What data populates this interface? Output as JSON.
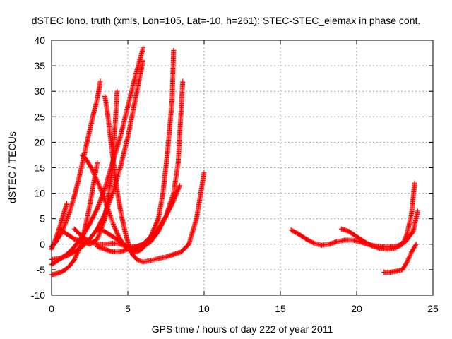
{
  "chart_data": {
    "type": "scatter",
    "title": "dSTEC Iono. truth (xmis, Lon=105, Lat=-10, h=261): STEC-STEC_elemax in phase cont.",
    "xlabel": "GPS time / hours of day 222 of year 2011",
    "ylabel": "dSTEC  / TECUs",
    "xlim": [
      0,
      25
    ],
    "ylim": [
      -10,
      40
    ],
    "xticks": [
      0,
      5,
      10,
      15,
      20,
      25
    ],
    "yticks": [
      -10,
      -5,
      0,
      5,
      10,
      15,
      20,
      25,
      30,
      35,
      40
    ],
    "grid": true,
    "marker": "plus",
    "color": "#ff0000",
    "series": [
      {
        "x": [
          0.0,
          0.3,
          0.6,
          0.9,
          1.2,
          1.5,
          1.8,
          2.1,
          2.4,
          2.7,
          3.0,
          3.2
        ],
        "y": [
          -0.5,
          0.5,
          2.0,
          4.0,
          6.5,
          9.5,
          13.0,
          17.0,
          21.0,
          25.0,
          28.5,
          32.0
        ]
      },
      {
        "x": [
          0.0,
          0.2,
          0.5,
          0.8,
          1.0
        ],
        "y": [
          -1.0,
          0.5,
          3.0,
          6.0,
          8.0
        ]
      },
      {
        "x": [
          0.0,
          0.3,
          0.6,
          0.9,
          1.2,
          1.5,
          1.8,
          2.1,
          2.4,
          2.7,
          3.0
        ],
        "y": [
          -6.0,
          -5.8,
          -5.5,
          -5.0,
          -4.2,
          -3.0,
          -1.0,
          2.0,
          6.0,
          11.0,
          16.0
        ]
      },
      {
        "x": [
          0.0,
          0.5,
          1.0,
          1.5,
          2.0,
          2.5,
          3.0,
          3.5,
          4.0,
          4.5,
          5.0,
          5.5,
          6.0
        ],
        "y": [
          -4.0,
          -3.0,
          -2.0,
          -0.5,
          1.5,
          4.0,
          7.0,
          11.0,
          16.0,
          21.0,
          27.0,
          33.0,
          38.5
        ]
      },
      {
        "x": [
          0.0,
          0.5,
          1.0,
          1.5,
          2.0,
          2.5,
          3.0,
          3.5,
          4.0,
          4.5,
          5.0,
          5.5,
          6.0
        ],
        "y": [
          -3.0,
          -2.8,
          -2.3,
          -1.5,
          -0.5,
          1.0,
          3.0,
          6.0,
          10.0,
          15.0,
          21.0,
          28.5,
          36.0
        ]
      },
      {
        "x": [
          2.0,
          2.3,
          2.6,
          2.9,
          3.2,
          3.5,
          3.8,
          4.1,
          4.4,
          4.7,
          5.0,
          5.3,
          5.6,
          5.9,
          6.2,
          6.5
        ],
        "y": [
          17.5,
          16.5,
          15.0,
          13.0,
          11.0,
          8.5,
          6.0,
          3.5,
          1.5,
          0.0,
          -1.0,
          -1.5,
          -1.5,
          -1.0,
          0.0,
          1.0
        ]
      },
      {
        "x": [
          3.5,
          3.7,
          3.9,
          4.1,
          4.3,
          4.5,
          4.7,
          4.9,
          5.1,
          5.3,
          5.6,
          6.0,
          6.5,
          7.0,
          7.5,
          8.0,
          8.5,
          9.0,
          9.5,
          10.0
        ],
        "y": [
          29.0,
          25.0,
          20.0,
          15.0,
          10.5,
          7.0,
          4.0,
          1.5,
          -0.5,
          -2.0,
          -3.0,
          -3.5,
          -3.2,
          -2.8,
          -2.5,
          -2.0,
          -1.5,
          0.0,
          5.0,
          14.0
        ]
      },
      {
        "x": [
          1.5,
          2.0,
          2.5,
          3.0,
          3.5,
          4.0,
          4.5,
          5.0,
          5.5,
          6.0,
          6.5,
          7.0,
          7.3,
          7.6,
          7.9,
          8.0
        ],
        "y": [
          3.0,
          1.5,
          0.5,
          0.0,
          0.0,
          0.2,
          0.0,
          -0.5,
          -0.5,
          0.0,
          1.5,
          5.0,
          10.0,
          18.0,
          28.0,
          38.0
        ]
      },
      {
        "x": [
          3.0,
          3.5,
          4.0,
          4.5,
          5.0,
          5.5,
          6.0,
          6.5,
          7.0,
          7.5,
          8.0,
          8.3,
          8.6
        ],
        "y": [
          3.0,
          2.5,
          1.5,
          0.5,
          -0.5,
          -1.0,
          -0.5,
          0.5,
          2.5,
          5.5,
          10.0,
          16.0,
          32.0
        ]
      },
      {
        "x": [
          0.5,
          1.0,
          1.5,
          2.0,
          2.5,
          3.0,
          3.5,
          4.0,
          4.3
        ],
        "y": [
          3.0,
          2.0,
          1.0,
          0.5,
          0.0,
          1.0,
          5.0,
          15.0,
          30.0
        ]
      },
      {
        "x": [
          3.0,
          3.5,
          4.0,
          4.5,
          5.0,
          5.5,
          6.0,
          6.5,
          7.0,
          7.5,
          8.0,
          8.4
        ],
        "y": [
          -0.5,
          -1.0,
          -1.5,
          -1.5,
          -1.0,
          -0.5,
          0.0,
          1.0,
          3.0,
          5.5,
          8.5,
          11.5
        ]
      },
      {
        "x": [
          15.7,
          16.2,
          16.7,
          17.2,
          17.7,
          18.2,
          18.7,
          19.2,
          19.7,
          20.2,
          20.7,
          21.2,
          21.7,
          22.2,
          22.7,
          23.2,
          23.7,
          24.0
        ],
        "y": [
          2.8,
          2.0,
          1.0,
          0.2,
          -0.2,
          0.0,
          0.5,
          0.8,
          0.8,
          0.5,
          0.0,
          -0.3,
          -0.5,
          -0.5,
          -0.3,
          0.5,
          2.5,
          6.5
        ]
      },
      {
        "x": [
          19.0,
          19.5,
          20.0,
          20.5,
          21.0,
          21.5,
          22.0,
          22.5,
          23.0,
          23.3,
          23.6,
          23.8
        ],
        "y": [
          3.0,
          2.5,
          1.5,
          0.5,
          -0.3,
          -0.8,
          -1.0,
          -0.8,
          0.0,
          2.0,
          6.0,
          12.0
        ]
      },
      {
        "x": [
          21.8,
          22.2,
          22.6,
          23.0,
          23.3,
          23.6,
          23.9
        ],
        "y": [
          -5.5,
          -5.5,
          -5.3,
          -5.0,
          -3.5,
          -1.5,
          0.0
        ]
      }
    ]
  }
}
